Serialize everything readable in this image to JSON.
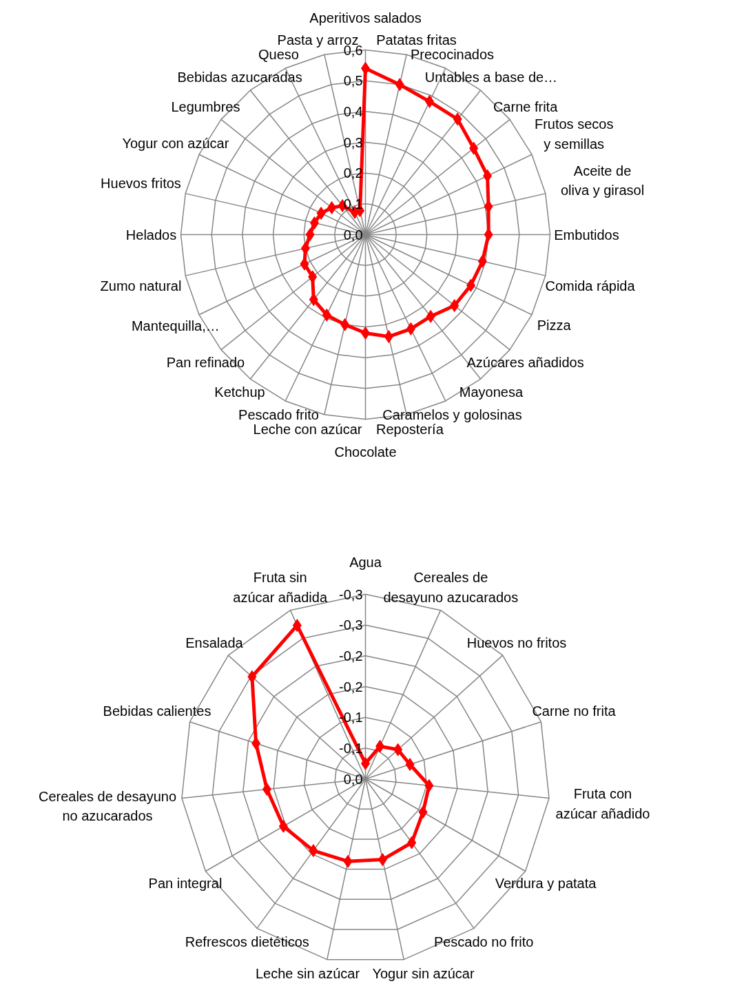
{
  "chart_data": [
    {
      "type": "radar",
      "categories": [
        "Aperitivos salados",
        "Patatas fritas",
        "Precocinados",
        "Untables a base de…",
        "Carne frita",
        "Frutos secos y semillas",
        "Aceite de oliva y girasol",
        "Embutidos",
        "Comida rápida",
        "Pizza",
        "Azúcares añadidos",
        "Mayonesa",
        "Caramelos y golosinas",
        "Repostería",
        "Chocolate",
        "Leche con azúcar",
        "Pescado frito",
        "Ketchup",
        "Pan refinado",
        "Mantequilla,…",
        "Zumo natural",
        "Helados",
        "Huevos fritos",
        "Yogur con azúcar",
        "Legumbres",
        "Bebidas azucaradas",
        "Queso",
        "Pasta y arroz"
      ],
      "series": [
        {
          "color": "#ff0000",
          "values": [
            0.54,
            0.5,
            0.48,
            0.48,
            0.45,
            0.44,
            0.41,
            0.4,
            0.39,
            0.38,
            0.37,
            0.34,
            0.34,
            0.34,
            0.32,
            0.3,
            0.29,
            0.27,
            0.22,
            0.22,
            0.2,
            0.18,
            0.17,
            0.16,
            0.14,
            0.12,
            0.08,
            0.08
          ]
        }
      ],
      "ylim": [
        0,
        0.6
      ],
      "yticks": [
        {
          "value": 0,
          "label": "0,0"
        },
        {
          "value": 0.1,
          "label": "0,1"
        },
        {
          "value": 0.2,
          "label": "0,2"
        },
        {
          "value": 0.3,
          "label": "0,3"
        },
        {
          "value": 0.4,
          "label": "0,4"
        },
        {
          "value": 0.5,
          "label": "0,5"
        },
        {
          "value": 0.6,
          "label": "0,6"
        }
      ],
      "grid": true,
      "marker": "diamond",
      "line_style": "solid"
    },
    {
      "type": "radar",
      "categories": [
        "Agua",
        "Cereales de desayuno azucarados",
        "Huevos no fritos",
        "Carne no frita",
        "Fruta con azúcar añadido",
        "Verdura y patata",
        "Pescado no frito",
        "Yogur sin azúcar",
        "Leche sin azúcar",
        "Refrescos dietéticos",
        "Pan integral",
        "Cereales de desayuno no azucarados",
        "Bebidas calientes",
        "Ensalada",
        "Fruta sin azúcar añadida"
      ],
      "series": [
        {
          "color": "#ff0000",
          "values": [
            -0.025,
            -0.058,
            -0.071,
            -0.076,
            -0.104,
            -0.108,
            -0.128,
            -0.134,
            -0.137,
            -0.144,
            -0.154,
            -0.161,
            -0.187,
            -0.248,
            -0.273
          ]
        }
      ],
      "ylim": [
        0,
        -0.3
      ],
      "yticks": [
        {
          "value": 0,
          "label": "0,0"
        },
        {
          "value": -0.05,
          "label": "-0,1"
        },
        {
          "value": -0.1,
          "label": "-0,1"
        },
        {
          "value": -0.15,
          "label": "-0,2"
        },
        {
          "value": -0.2,
          "label": "-0,2"
        },
        {
          "value": -0.25,
          "label": "-0,3"
        },
        {
          "value": -0.3,
          "label": "-0,3"
        }
      ],
      "grid": true,
      "marker": "diamond",
      "line_style": "solid"
    }
  ]
}
